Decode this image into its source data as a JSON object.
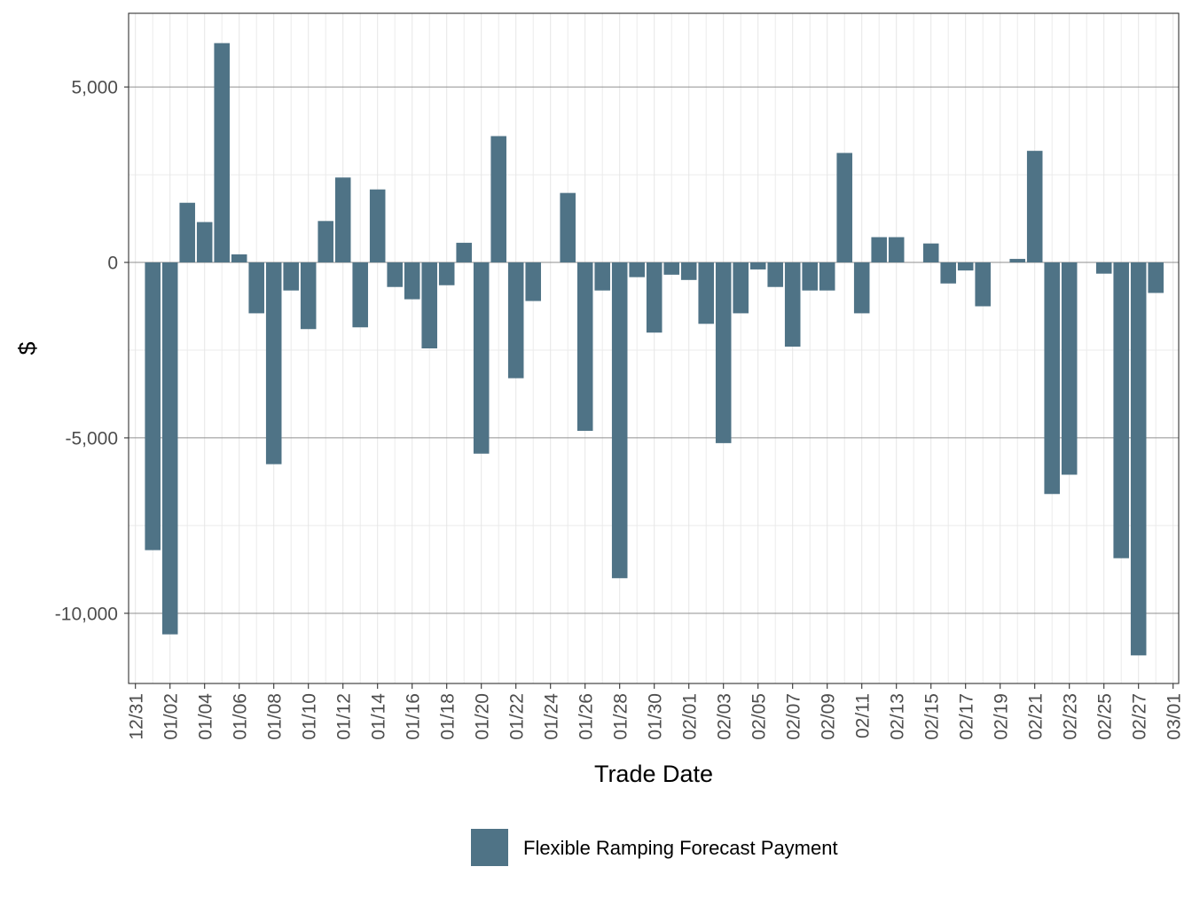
{
  "chart_data": {
    "type": "bar",
    "xlabel": "Trade Date",
    "ylabel": "$",
    "ylim": [
      -12000,
      7100
    ],
    "y_ticks": [
      5000,
      0,
      -5000,
      -10000
    ],
    "y_tick_labels": [
      "5,000",
      "0",
      "-5,000",
      "-10,000"
    ],
    "x_tick_labels": [
      "12/31",
      "01/02",
      "01/04",
      "01/06",
      "01/08",
      "01/10",
      "01/12",
      "01/14",
      "01/16",
      "01/18",
      "01/20",
      "01/22",
      "01/24",
      "01/26",
      "01/28",
      "01/30",
      "02/01",
      "02/03",
      "02/05",
      "02/07",
      "02/09",
      "02/11",
      "02/13",
      "02/15",
      "02/17",
      "02/19",
      "02/21",
      "02/23",
      "02/25",
      "02/27",
      "03/01"
    ],
    "grid": true,
    "legend_position": "bottom",
    "bar_color": "#4f7386",
    "series": [
      {
        "name": "Flexible Ramping Forecast Payment",
        "categories": [
          "01/01",
          "01/02",
          "01/03",
          "01/04",
          "01/05",
          "01/06",
          "01/07",
          "01/08",
          "01/09",
          "01/10",
          "01/11",
          "01/12",
          "01/13",
          "01/14",
          "01/15",
          "01/16",
          "01/17",
          "01/18",
          "01/19",
          "01/20",
          "01/21",
          "01/22",
          "01/23",
          "01/24",
          "01/25",
          "01/26",
          "01/27",
          "01/28",
          "01/29",
          "01/30",
          "01/31",
          "02/01",
          "02/02",
          "02/03",
          "02/04",
          "02/05",
          "02/06",
          "02/07",
          "02/08",
          "02/09",
          "02/10",
          "02/11",
          "02/12",
          "02/13",
          "02/14",
          "02/15",
          "02/16",
          "02/17",
          "02/18",
          "02/19",
          "02/20",
          "02/21",
          "02/22",
          "02/23",
          "02/24",
          "02/25",
          "02/26",
          "02/27",
          "02/28"
        ],
        "values": [
          -8200,
          -10600,
          1700,
          1150,
          6250,
          230,
          -1450,
          -5750,
          -800,
          -1900,
          1180,
          2420,
          -1850,
          2080,
          -700,
          -1050,
          -2450,
          -650,
          560,
          -5450,
          3600,
          -3300,
          -1100,
          0,
          1980,
          -4800,
          -800,
          -9000,
          -420,
          -2000,
          -350,
          -500,
          -1750,
          -5150,
          -1450,
          -200,
          -700,
          -2400,
          -800,
          -800,
          3120,
          -1450,
          720,
          720,
          0,
          540,
          -600,
          -230,
          -1250,
          0,
          100,
          3180,
          -6600,
          -6050,
          0,
          -320,
          -8430,
          -11200,
          -870
        ]
      }
    ]
  },
  "legend": {
    "label": "Flexible Ramping Forecast Payment",
    "swatch_color": "#4f7386"
  }
}
